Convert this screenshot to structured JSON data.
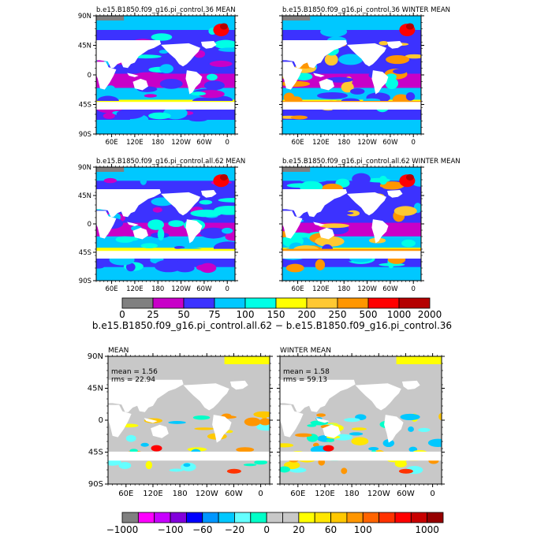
{
  "panels": [
    {
      "title": "b.e15.B1850.f09_g16.pi_control.36 MEAN",
      "type": "field"
    },
    {
      "title": "b.e15.B1850.f09_g16.pi_control.36 WINTER MEAN",
      "type": "field"
    },
    {
      "title": "b.e15.B1850.f09_g16.pi_control.all.62 MEAN",
      "type": "field"
    },
    {
      "title": "b.e15.B1850.f09_g16.pi_control.all.62 WINTER MEAN",
      "type": "field"
    },
    {
      "title": "MEAN",
      "type": "diff",
      "mean_label": "mean = 1.56",
      "rms_label": "rms = 22.94"
    },
    {
      "title": "WINTER MEAN",
      "type": "diff",
      "mean_label": "mean = 1.58",
      "rms_label": "rms = 59.13"
    }
  ],
  "lat_ticks": [
    "90N",
    "45N",
    "0",
    "45S",
    "90S"
  ],
  "lon_ticks": [
    "60E",
    "120E",
    "180",
    "120W",
    "60W",
    "0"
  ],
  "field_colorbar": {
    "colors": [
      "#808080",
      "#c800c8",
      "#3c32ff",
      "#00c8ff",
      "#00ffe6",
      "#ffff00",
      "#ffc832",
      "#ff9600",
      "#ff0000",
      "#b40000"
    ],
    "labels": [
      "0",
      "25",
      "50",
      "75",
      "100",
      "150",
      "200",
      "250",
      "500",
      "1000",
      "2000"
    ]
  },
  "diff_title": "b.e15.B1850.f09_g16.pi_control.all.62 − b.e15.B1850.f09_g16.pi_control.36",
  "diff_colorbar": {
    "colors": [
      "#808080",
      "#ff00ff",
      "#c800ff",
      "#8200dc",
      "#0000ff",
      "#0096ff",
      "#00c8ff",
      "#64ffff",
      "#00ffc8",
      "#c8c8c8",
      "#c8c8c8",
      "#ffff00",
      "#ffe600",
      "#ffc800",
      "#ff9600",
      "#ff6400",
      "#ff3200",
      "#ff0000",
      "#c80000",
      "#960000"
    ],
    "labels": [
      "−1000",
      "",
      "",
      "−100",
      "",
      "−60",
      "",
      "−20",
      "",
      "0",
      "",
      "20",
      "",
      "60",
      "",
      "100",
      "",
      "",
      "",
      "1000"
    ]
  }
}
